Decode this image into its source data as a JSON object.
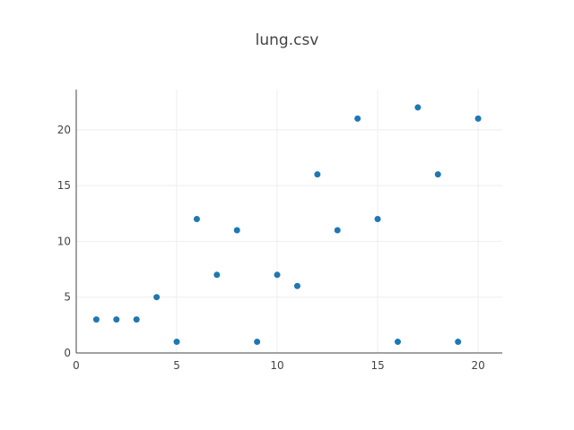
{
  "chart_data": {
    "type": "scatter",
    "title": "lung.csv",
    "xlabel": "",
    "ylabel": "",
    "xlim": [
      0,
      21.2
    ],
    "ylim": [
      0,
      23.6
    ],
    "x_ticks": [
      0,
      5,
      10,
      15,
      20
    ],
    "y_ticks": [
      0,
      5,
      10,
      15,
      20
    ],
    "grid": true,
    "marker_color": "#1f77b4",
    "series": [
      {
        "x": [
          1,
          2,
          3,
          4,
          5,
          6,
          7,
          8,
          9,
          10,
          11,
          12,
          13,
          14,
          15,
          16,
          17,
          18,
          19,
          20
        ],
        "y": [
          3,
          3,
          3,
          5,
          1,
          12,
          7,
          11,
          1,
          7,
          6,
          16,
          11,
          21,
          12,
          1,
          22,
          16,
          1,
          21
        ]
      }
    ]
  }
}
